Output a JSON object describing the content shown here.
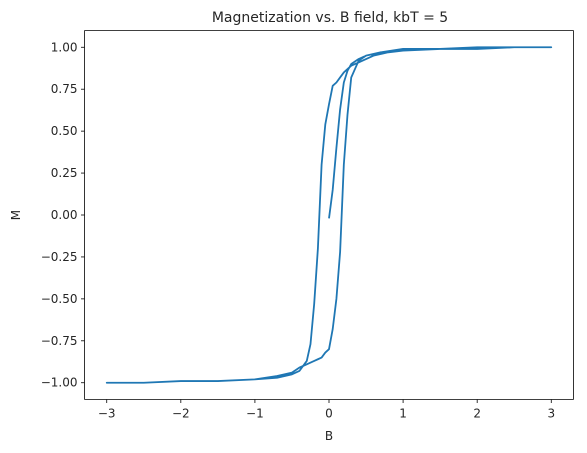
{
  "chart_data": {
    "type": "line",
    "title": "Magnetization vs. B field, kbT = 5",
    "xlabel": "B",
    "ylabel": "M",
    "xlim": [
      -3.3,
      3.3
    ],
    "ylim": [
      -1.1,
      1.1
    ],
    "xticks": [
      -3,
      -2,
      -1,
      0,
      1,
      2,
      3
    ],
    "xtick_labels": [
      "−3",
      "−2",
      "−1",
      "0",
      "1",
      "2",
      "3"
    ],
    "yticks": [
      -1.0,
      -0.75,
      -0.5,
      -0.25,
      0.0,
      0.25,
      0.5,
      0.75,
      1.0
    ],
    "ytick_labels": [
      "−1.00",
      "−0.75",
      "−0.50",
      "−0.25",
      "0.00",
      "0.25",
      "0.50",
      "0.75",
      "1.00"
    ],
    "grid": false,
    "color": "#1f77b4",
    "series": [
      {
        "x": [
          0.0,
          0.05,
          0.1,
          0.15,
          0.2,
          0.25,
          0.3,
          0.4,
          0.5,
          0.7,
          1.0,
          1.5,
          2.0,
          2.5,
          3.0,
          2.5,
          2.0,
          1.5,
          1.0,
          0.8,
          0.6,
          0.5,
          0.4,
          0.3,
          0.25,
          0.2,
          0.15,
          0.1,
          0.05,
          0.0,
          -0.05,
          -0.1,
          -0.15,
          -0.2,
          -0.25,
          -0.3,
          -0.4,
          -0.5,
          -0.7,
          -1.0,
          -1.5,
          -2.0,
          -2.5,
          -3.0,
          -2.5,
          -2.0,
          -1.5,
          -1.0,
          -0.7,
          -0.5,
          -0.4,
          -0.3,
          -0.2,
          -0.15,
          -0.1,
          -0.05,
          0.0,
          0.05,
          0.1,
          0.15,
          0.2,
          0.25,
          0.3,
          0.4,
          0.5,
          0.7,
          1.0,
          1.5,
          2.0,
          2.5,
          3.0
        ],
        "y": [
          -0.02,
          0.15,
          0.4,
          0.63,
          0.79,
          0.86,
          0.9,
          0.93,
          0.95,
          0.97,
          0.99,
          0.99,
          1.0,
          1.0,
          1.0,
          1.0,
          0.99,
          0.99,
          0.98,
          0.97,
          0.95,
          0.93,
          0.91,
          0.89,
          0.87,
          0.85,
          0.82,
          0.79,
          0.77,
          0.66,
          0.54,
          0.3,
          -0.2,
          -0.53,
          -0.77,
          -0.87,
          -0.93,
          -0.95,
          -0.97,
          -0.98,
          -0.99,
          -0.99,
          -1.0,
          -1.0,
          -1.0,
          -0.99,
          -0.99,
          -0.98,
          -0.96,
          -0.94,
          -0.91,
          -0.89,
          -0.87,
          -0.86,
          -0.85,
          -0.82,
          -0.8,
          -0.68,
          -0.5,
          -0.22,
          0.3,
          0.6,
          0.82,
          0.92,
          0.95,
          0.97,
          0.99,
          0.99,
          1.0,
          1.0,
          1.0
        ]
      }
    ]
  }
}
